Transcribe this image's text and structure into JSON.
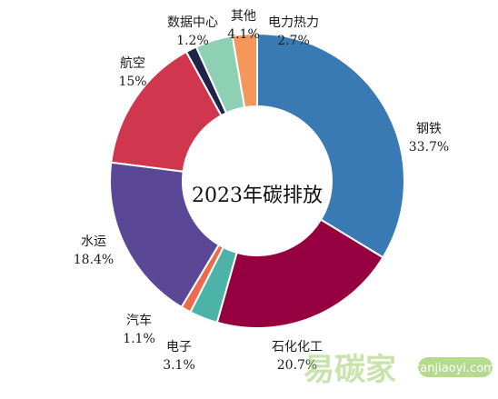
{
  "chart_data": {
    "type": "pie",
    "variant": "donut",
    "center_label": "2023年碳排放",
    "slices": [
      {
        "name": "钢铁",
        "label": "33.7%",
        "value": 33.7,
        "color": "#3a7ab4"
      },
      {
        "name": "石化化工",
        "label": "20.7%",
        "value": 20.7,
        "color": "#960040"
      },
      {
        "name": "电子",
        "label": "3.1%",
        "value": 3.1,
        "color": "#4db3a9"
      },
      {
        "name": "汽车",
        "label": "1.1%",
        "value": 1.1,
        "color": "#ec6b4d"
      },
      {
        "name": "水运",
        "label": "18.4%",
        "value": 18.4,
        "color": "#5a4796"
      },
      {
        "name": "航空",
        "label": "15%",
        "value": 15,
        "color": "#d0364e"
      },
      {
        "name": "数据中心",
        "label": "1.2%",
        "value": 1.2,
        "color": "#1f2347"
      },
      {
        "name": "其他",
        "label": "4.1%",
        "value": 4.1,
        "color": "#8ed0b4"
      },
      {
        "name": "电力热力",
        "label": "2.7%",
        "value": 2.7,
        "color": "#f5975a"
      }
    ]
  },
  "watermark": {
    "text": "易碳家",
    "url": "tanjiaoyi.com",
    "color": "#9ccf6a"
  }
}
